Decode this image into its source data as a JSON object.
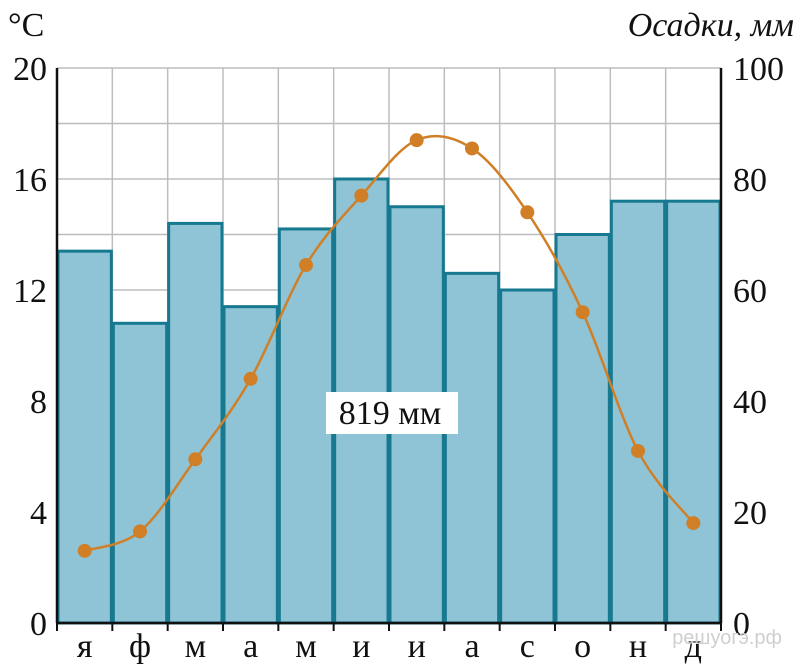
{
  "chart_data": {
    "type": "bar",
    "left_axis_label": "°C",
    "right_axis_label": "Осадки, мм",
    "categories": [
      "я",
      "ф",
      "м",
      "а",
      "м",
      "и",
      "и",
      "а",
      "с",
      "о",
      "н",
      "д"
    ],
    "left_ticks": [
      "0",
      "4",
      "8",
      "12",
      "16",
      "20"
    ],
    "right_ticks": [
      "0",
      "20",
      "40",
      "60",
      "80",
      "100"
    ],
    "left_ylim": [
      0,
      20
    ],
    "right_ylim": [
      0,
      100
    ],
    "series": [
      {
        "type": "bar",
        "axis": "right",
        "values": [
          67,
          54,
          72,
          57,
          71,
          80,
          75,
          63,
          60,
          70,
          76,
          76
        ]
      },
      {
        "type": "line",
        "axis": "left",
        "values": [
          2.6,
          3.3,
          5.9,
          8.8,
          12.9,
          15.4,
          17.4,
          17.1,
          14.8,
          11.2,
          6.2,
          3.6
        ]
      }
    ],
    "annotation": "819 мм",
    "grid": true,
    "colors": {
      "bar_fill": "#8ec4d6",
      "bar_stroke": "#16798f",
      "line": "#d07f27",
      "grid": "#bdbdbd"
    }
  },
  "watermark": "решуогэ.рф"
}
